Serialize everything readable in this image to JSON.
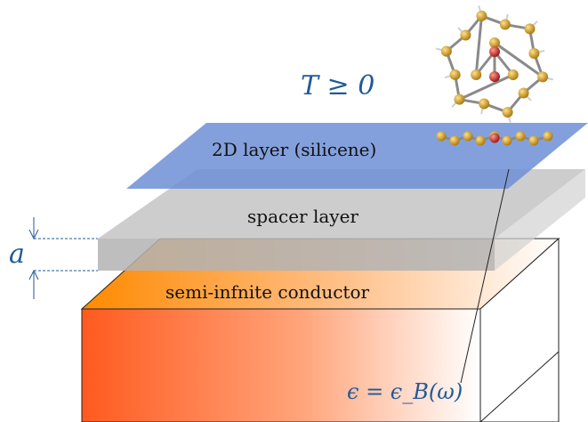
{
  "labels": {
    "temperature": "T ≥ 0",
    "layer_2d": "2D layer (silicene)",
    "spacer": "spacer layer",
    "conductor": "semi-infnite conductor",
    "separation": "a",
    "dielectric": "ϵ = ϵ_B(ω)"
  },
  "colors": {
    "layer_2d": "#6f8fd6",
    "spacer": "#b5b5b5",
    "conductor_hot": "#ff5a1f",
    "conductor_top": "#ff8a00",
    "math": "#1f5a99",
    "atom_si": "#c8921a",
    "atom_center": "#c0281c"
  },
  "molecule": "silicene-icon"
}
